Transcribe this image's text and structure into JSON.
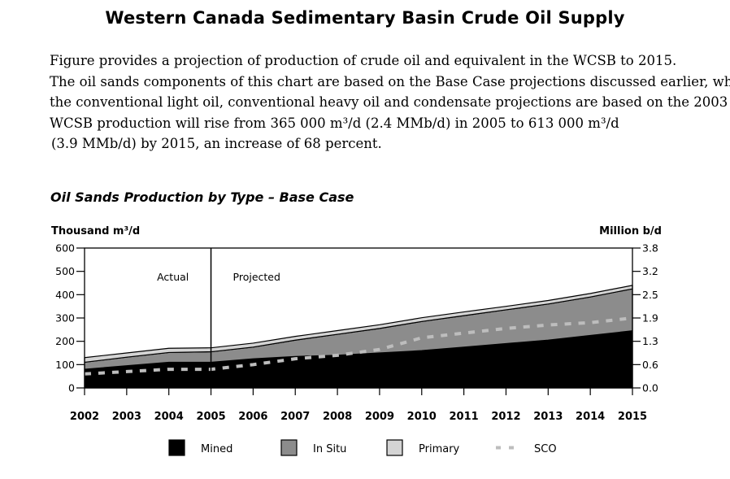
{
  "page": {
    "title": "Western Canada Sedimentary Basin Crude Oil Supply",
    "paragraph_lines": [
      "Figure      provides a projection of production of crude oil and equivalent in the WCSB to 2015.",
      "The oil sands components of this chart are based on the Base Case projections discussed earlier, while",
      "the conventional light oil, conventional heavy oil and condensate projections are based on the 2003",
      "WCSB production will rise from 365 000 m³/d (2.4 MMb/d) in 2005 to 613 000 m³/d",
      "(3.9 MMb/d) by 2015, an increase of 68 percent."
    ]
  },
  "chart_data": {
    "type": "area",
    "title": "Oil Sands Production by Type – Base Case",
    "ylabel_left": "Thousand m³/d",
    "ylabel_right": "Million b/d",
    "categories": [
      "2002",
      "2003",
      "2004",
      "2005",
      "2006",
      "2007",
      "2008",
      "2009",
      "2010",
      "2011",
      "2012",
      "2013",
      "2014",
      "2015"
    ],
    "ylim": [
      0,
      600
    ],
    "y_ticks_left": [
      0,
      100,
      200,
      300,
      400,
      500,
      600
    ],
    "y_ticks_left_labels": [
      "0",
      "100",
      "200",
      "300",
      "400",
      "500",
      "600"
    ],
    "y_ticks_right_labels": [
      "0.0",
      "0.6",
      "1.3",
      "1.9",
      "2.5",
      "3.2",
      "3.8"
    ],
    "annotations": [
      {
        "text": "Actual",
        "between": [
          "2003",
          "2005"
        ]
      },
      {
        "text": "Projected",
        "after": "2005"
      }
    ],
    "divider_at": "2005",
    "stacked": true,
    "series": [
      {
        "name": "Mined",
        "style": "area",
        "color": "#000000",
        "values": [
          80,
          95,
          110,
          110,
          125,
          135,
          140,
          150,
          160,
          175,
          190,
          205,
          225,
          245
        ]
      },
      {
        "name": "In Situ",
        "style": "area",
        "color": "#8c8c8c",
        "values": [
          30,
          37,
          42,
          45,
          50,
          70,
          90,
          105,
          125,
          135,
          145,
          155,
          165,
          180
        ]
      },
      {
        "name": "Primary",
        "style": "area",
        "color": "#d4d4d4",
        "values": [
          20,
          18,
          18,
          17,
          17,
          16,
          16,
          16,
          16,
          16,
          15,
          15,
          15,
          15
        ]
      },
      {
        "name": "SCO",
        "style": "dashed-line",
        "color": "#bdbdbd",
        "values": [
          60,
          70,
          80,
          80,
          100,
          125,
          140,
          165,
          215,
          235,
          255,
          270,
          280,
          300
        ]
      }
    ],
    "legend": {
      "position": "bottom",
      "entries": [
        "Mined",
        "In Situ",
        "Primary",
        "SCO"
      ]
    }
  }
}
